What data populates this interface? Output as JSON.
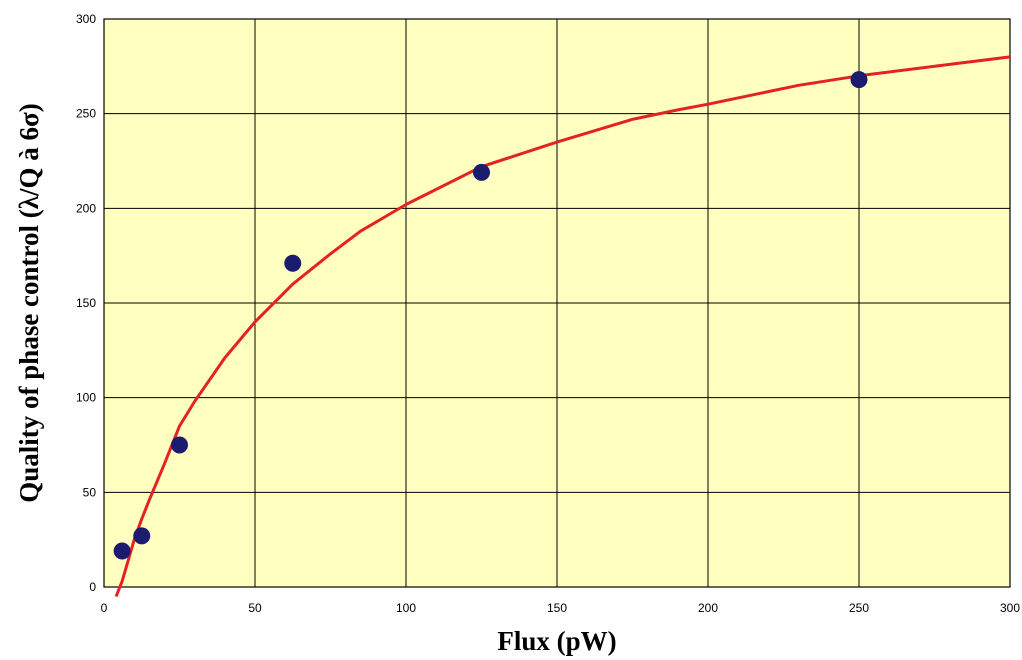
{
  "chart_data": {
    "type": "scatter",
    "title": "",
    "xlabel": "Flux (pW)",
    "ylabel": "Quality of phase control (λ/Q à 6σ)",
    "xlim": [
      0,
      300
    ],
    "ylim": [
      0,
      300
    ],
    "x_ticks": [
      "0",
      "50",
      "100",
      "150",
      "200",
      "250",
      "300"
    ],
    "y_ticks": [
      "0",
      "50",
      "100",
      "150",
      "200",
      "250",
      "300"
    ],
    "grid": true,
    "legend": "none",
    "series": [
      {
        "type": "scatter",
        "points": [
          [
            6,
            19
          ],
          [
            12.5,
            27
          ],
          [
            25,
            75
          ],
          [
            62.5,
            171
          ],
          [
            125,
            219
          ],
          [
            250,
            268
          ]
        ]
      },
      {
        "type": "line",
        "points": [
          [
            4,
            -5
          ],
          [
            6,
            3
          ],
          [
            8,
            14
          ],
          [
            10,
            25
          ],
          [
            12.5,
            36
          ],
          [
            15,
            46
          ],
          [
            20,
            65
          ],
          [
            25,
            85
          ],
          [
            30,
            98
          ],
          [
            40,
            121
          ],
          [
            50,
            140
          ],
          [
            62.5,
            160
          ],
          [
            75,
            176
          ],
          [
            85,
            188
          ],
          [
            100,
            202
          ],
          [
            125,
            222
          ],
          [
            150,
            235
          ],
          [
            175,
            247
          ],
          [
            190,
            252
          ],
          [
            200,
            255
          ],
          [
            230,
            265
          ],
          [
            250,
            270
          ],
          [
            280,
            276
          ],
          [
            300,
            280
          ]
        ]
      }
    ],
    "colors": {
      "plot_background": "#ffffc0",
      "grid": "#000000",
      "points": "#1c1c6e",
      "curve": "#e52222"
    }
  }
}
